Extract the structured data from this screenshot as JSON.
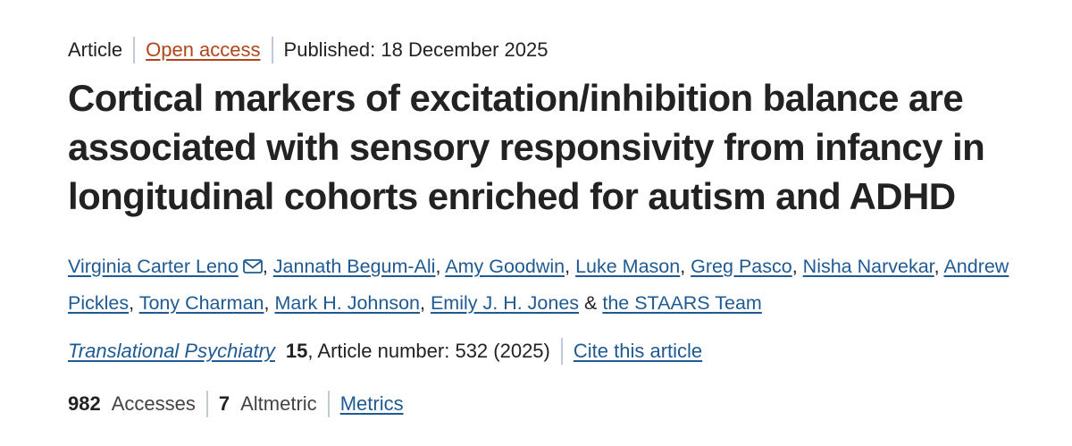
{
  "meta": {
    "type": "Article",
    "access": "Open access",
    "published": "Published: 18 December 2025"
  },
  "title": "Cortical markers of excitation/inhibition balance are associated with sensory responsivity from infancy in longitudinal cohorts enriched for autism and ADHD",
  "authors": [
    "Virginia Carter Leno",
    "Jannath Begum-Ali",
    "Amy Goodwin",
    "Luke Mason",
    "Greg Pasco",
    "Nisha Narvekar",
    "Andrew Pickles",
    "Tony Charman",
    "Mark H. Johnson",
    "Emily J. H. Jones",
    "the STAARS Team"
  ],
  "author_separators": {
    "comma": ",",
    "ampersand": "&"
  },
  "citation": {
    "journal": "Translational Psychiatry",
    "volume": "15",
    "article_number": ", Article number: 532 (2025)",
    "cite_label": "Cite this article"
  },
  "metrics": {
    "accesses_count": "982",
    "accesses_label": "Accesses",
    "altmetric_count": "7",
    "altmetric_label": "Altmetric",
    "metrics_link": "Metrics"
  },
  "icons": {
    "corresponding_author": "mail-icon"
  },
  "colors": {
    "link": "#1f5a93",
    "open_access": "#b0461a",
    "text": "#222222",
    "separator": "#bfcad6"
  }
}
